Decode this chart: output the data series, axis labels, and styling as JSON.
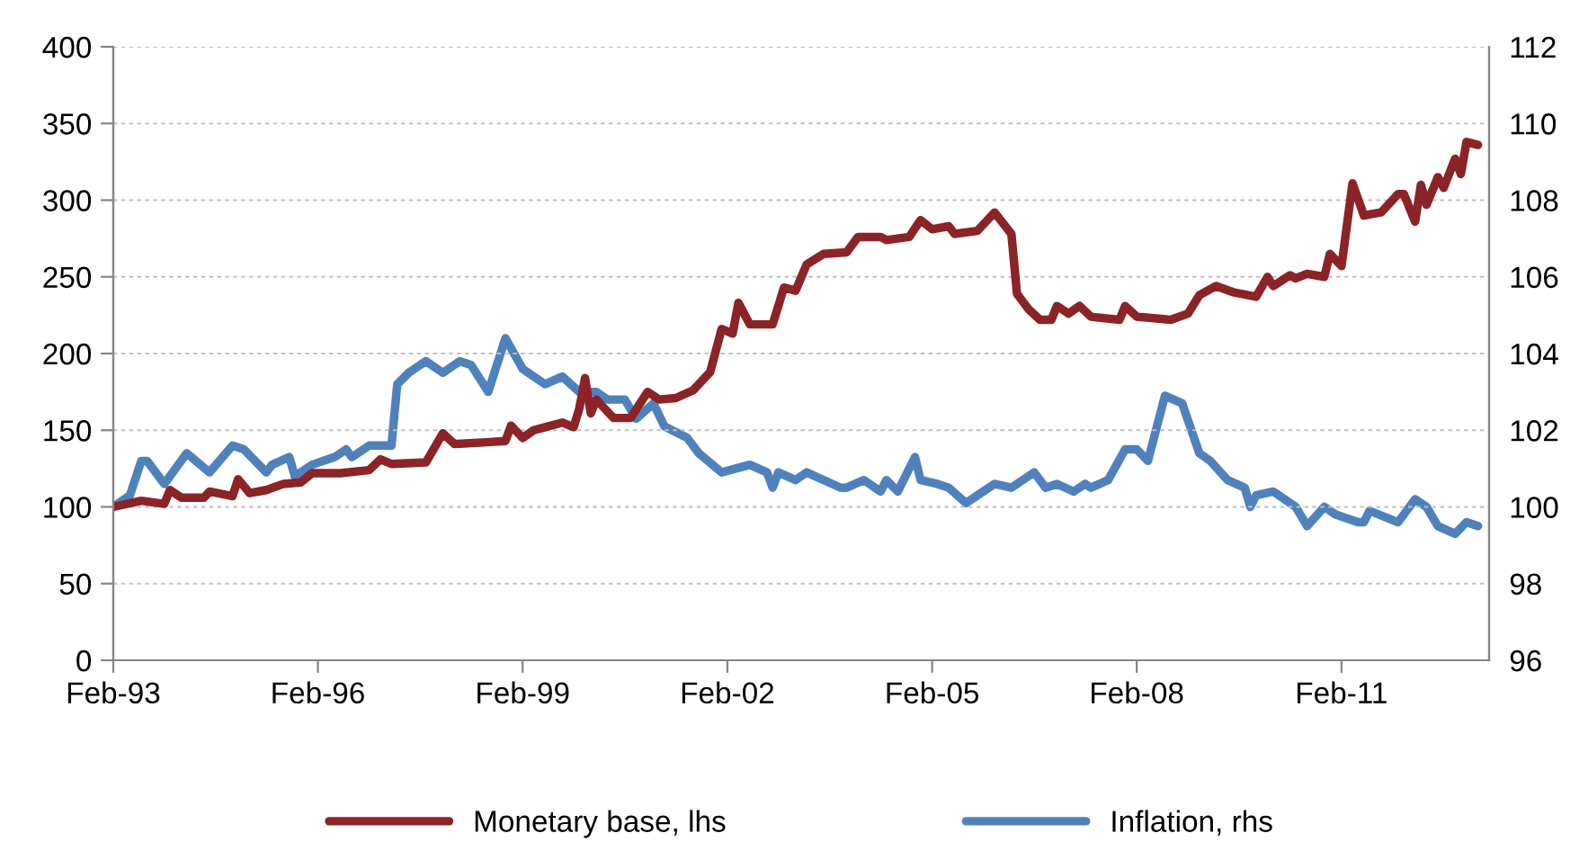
{
  "chart_data": {
    "type": "line",
    "xlim": [
      "1993-02",
      "2013-04"
    ],
    "xticks": [
      {
        "value": "1993-02",
        "label": "Feb-93"
      },
      {
        "value": "1996-02",
        "label": "Feb-96"
      },
      {
        "value": "1999-02",
        "label": "Feb-99"
      },
      {
        "value": "2002-02",
        "label": "Feb-02"
      },
      {
        "value": "2005-02",
        "label": "Feb-05"
      },
      {
        "value": "2008-02",
        "label": "Feb-08"
      },
      {
        "value": "2011-02",
        "label": "Feb-11"
      }
    ],
    "ylim": [
      0,
      400
    ],
    "yticks": [
      0,
      50,
      100,
      150,
      200,
      250,
      300,
      350,
      400
    ],
    "y2lim": [
      96,
      112
    ],
    "y2ticks": [
      96,
      98,
      100,
      102,
      104,
      106,
      108,
      110,
      112
    ],
    "grid": "y",
    "legend": "bottom",
    "line_style": "solid",
    "marker": "none",
    "series": [
      {
        "name": "Monetary base, lhs",
        "color": "#8b2327",
        "axis": "y",
        "x": [
          "1993-02",
          "1993-07",
          "1993-11",
          "1993-12",
          "1994-02",
          "1994-06",
          "1994-07",
          "1994-11",
          "1994-12",
          "1995-02",
          "1995-05",
          "1995-08",
          "1995-11",
          "1996-01",
          "1996-06",
          "1996-11",
          "1997-01",
          "1997-03",
          "1997-09",
          "1997-12",
          "1998-02",
          "1998-07",
          "1998-11",
          "1998-12",
          "1999-02",
          "1999-04",
          "1999-06",
          "1999-09",
          "1999-11",
          "1999-12",
          "2000-01",
          "2000-02",
          "2000-03",
          "2000-06",
          "2000-09",
          "2000-12",
          "2001-02",
          "2001-05",
          "2001-08",
          "2001-11",
          "2002-01",
          "2002-03",
          "2002-04",
          "2002-06",
          "2002-10",
          "2002-12",
          "2003-02",
          "2003-04",
          "2003-07",
          "2003-11",
          "2004-01",
          "2004-05",
          "2004-06",
          "2004-10",
          "2004-12",
          "2005-02",
          "2005-05",
          "2005-06",
          "2005-10",
          "2006-01",
          "2006-04",
          "2006-05",
          "2006-07",
          "2006-09",
          "2006-11",
          "2006-12",
          "2007-02",
          "2007-04",
          "2007-06",
          "2007-11",
          "2007-12",
          "2008-02",
          "2008-08",
          "2008-11",
          "2009-01",
          "2009-04",
          "2009-07",
          "2009-11",
          "2010-01",
          "2010-02",
          "2010-05",
          "2010-06",
          "2010-08",
          "2010-11",
          "2010-12",
          "2011-02",
          "2011-04",
          "2011-06",
          "2011-09",
          "2011-12",
          "2012-01",
          "2012-03",
          "2012-04",
          "2012-05",
          "2012-07",
          "2012-08",
          "2012-10",
          "2012-11",
          "2012-12",
          "2013-02"
        ],
        "values": [
          100,
          104,
          102,
          111,
          106,
          106,
          110,
          107,
          118,
          109,
          111,
          115,
          116,
          122,
          122,
          124,
          131,
          128,
          129,
          148,
          141,
          142,
          143,
          153,
          145,
          150,
          152,
          155,
          152,
          164,
          184,
          161,
          170,
          158,
          158,
          175,
          170,
          171,
          176,
          188,
          216,
          213,
          233,
          219,
          219,
          243,
          241,
          258,
          265,
          266,
          276,
          276,
          274,
          276,
          287,
          281,
          283,
          278,
          280,
          292,
          278,
          239,
          229,
          222,
          222,
          231,
          226,
          231,
          224,
          222,
          231,
          224,
          222,
          226,
          238,
          244,
          240,
          237,
          250,
          244,
          251,
          249,
          252,
          250,
          265,
          257,
          311,
          290,
          292,
          304,
          304,
          286,
          310,
          297,
          315,
          308,
          327,
          317,
          338,
          336
        ]
      },
      {
        "name": "Inflation, rhs",
        "color": "#4f81bd",
        "axis": "y2",
        "x": [
          "1993-02",
          "1993-05",
          "1993-07",
          "1993-08",
          "1993-11",
          "1994-03",
          "1994-07",
          "1994-11",
          "1995-01",
          "1995-05",
          "1995-06",
          "1995-09",
          "1995-10",
          "1996-01",
          "1996-05",
          "1996-07",
          "1996-08",
          "1996-11",
          "1997-03",
          "1997-04",
          "1997-06",
          "1997-09",
          "1997-12",
          "1998-03",
          "1998-05",
          "1998-08",
          "1998-11",
          "1999-02",
          "1999-06",
          "1999-09",
          "1999-12",
          "2000-03",
          "2000-05",
          "2000-08",
          "2000-10",
          "2001-01",
          "2001-03",
          "2001-07",
          "2001-09",
          "2002-01",
          "2002-06",
          "2002-09",
          "2002-10",
          "2002-11",
          "2003-02",
          "2003-04",
          "2003-10",
          "2003-11",
          "2004-02",
          "2004-05",
          "2004-06",
          "2004-08",
          "2004-11",
          "2004-12",
          "2005-03",
          "2005-05",
          "2005-08",
          "2005-10",
          "2006-01",
          "2006-04",
          "2006-06",
          "2006-08",
          "2006-10",
          "2006-12",
          "2007-03",
          "2007-05",
          "2007-06",
          "2007-09",
          "2007-12",
          "2008-02",
          "2008-04",
          "2008-07",
          "2008-10",
          "2009-01",
          "2009-03",
          "2009-06",
          "2009-09",
          "2009-10",
          "2009-11",
          "2010-02",
          "2010-06",
          "2010-08",
          "2010-11",
          "2011-01",
          "2011-05",
          "2011-06",
          "2011-07",
          "2011-12",
          "2012-03",
          "2012-05",
          "2012-07",
          "2012-10",
          "2012-12",
          "2013-02"
        ],
        "values": [
          100.0,
          100.3,
          101.2,
          101.2,
          100.6,
          101.4,
          100.9,
          101.6,
          101.5,
          100.9,
          101.1,
          101.3,
          100.8,
          101.1,
          101.3,
          101.5,
          101.3,
          101.6,
          101.6,
          103.2,
          103.5,
          103.8,
          103.5,
          103.8,
          103.7,
          103.0,
          104.4,
          103.6,
          103.2,
          103.4,
          103.0,
          103.0,
          102.8,
          102.8,
          102.3,
          102.7,
          102.1,
          101.8,
          101.4,
          100.9,
          101.1,
          100.9,
          100.5,
          100.9,
          100.7,
          100.9,
          100.5,
          100.5,
          100.7,
          100.4,
          100.7,
          100.4,
          101.3,
          100.7,
          100.6,
          100.5,
          100.1,
          100.3,
          100.6,
          100.5,
          100.7,
          100.9,
          100.5,
          100.6,
          100.4,
          100.6,
          100.5,
          100.7,
          101.5,
          101.5,
          101.2,
          102.9,
          102.7,
          101.4,
          101.2,
          100.7,
          100.5,
          100.0,
          100.3,
          100.4,
          100.0,
          99.5,
          100.0,
          99.8,
          99.6,
          99.6,
          99.9,
          99.6,
          100.2,
          100.0,
          99.5,
          99.3,
          99.6,
          99.5
        ]
      }
    ]
  }
}
